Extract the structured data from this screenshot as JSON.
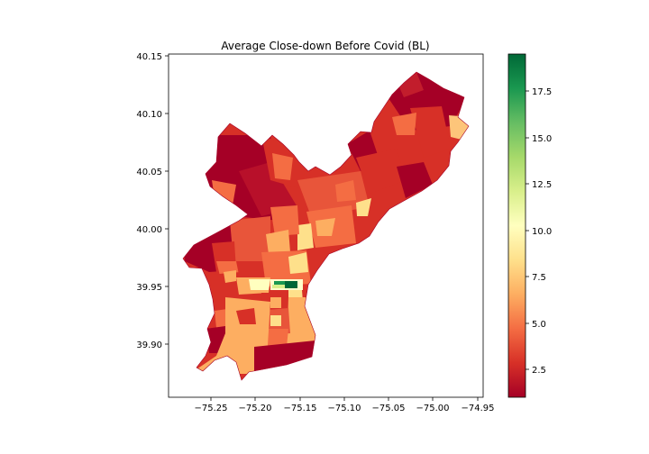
{
  "chart_data": {
    "type": "choropleth-map",
    "title": "Average Close-down Before Covid (BL)",
    "xlabel": "",
    "ylabel": "",
    "xlim": [
      -75.295,
      -74.94
    ],
    "ylim": [
      39.855,
      40.155
    ],
    "x_ticks": [
      "−75.25",
      "−75.20",
      "−75.15",
      "−75.10",
      "−75.05",
      "−75.00",
      "−74.95"
    ],
    "x_tick_values": [
      -75.25,
      -75.2,
      -75.15,
      -75.1,
      -75.05,
      -75.0,
      -74.95
    ],
    "y_ticks": [
      "39.90",
      "39.95",
      "40.00",
      "40.05",
      "40.10",
      "40.15"
    ],
    "y_tick_values": [
      39.9,
      39.95,
      40.0,
      40.05,
      40.1,
      40.15
    ],
    "colormap": "RdYlGn",
    "colorbar": {
      "min": 0.9,
      "max": 19.5,
      "ticks": [
        "2.5",
        "5.0",
        "7.5",
        "10.0",
        "12.5",
        "15.0",
        "17.5"
      ],
      "tick_values": [
        2.5,
        5.0,
        7.5,
        10.0,
        12.5,
        15.0,
        17.5
      ]
    },
    "grid": false,
    "legend": "colorbar-right"
  }
}
